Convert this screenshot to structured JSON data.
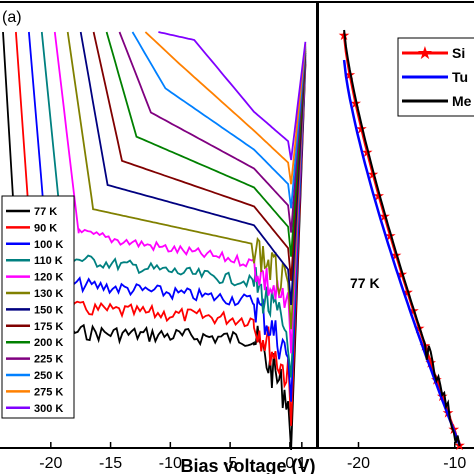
{
  "chart_data": [
    {
      "type": "line",
      "panel_label": "(a)",
      "xlabel": "Bias voltage (V)",
      "xlim": [
        -24,
        1.6
      ],
      "x_ticks": [
        -20,
        -15,
        -10,
        -5,
        0,
        1
      ],
      "x_tick_labels": [
        "-20",
        "-15",
        "-10",
        "-5",
        "0",
        "1"
      ],
      "log_scale_y": true,
      "legend_placement": "bottom-left",
      "series": [
        {
          "name": "77 K",
          "color": "#000000"
        },
        {
          "name": "90 K",
          "color": "#ff0000"
        },
        {
          "name": "100 K",
          "color": "#0000ff"
        },
        {
          "name": "110 K",
          "color": "#008080"
        },
        {
          "name": "120 K",
          "color": "#ff00ff"
        },
        {
          "name": "130 K",
          "color": "#808000"
        },
        {
          "name": "150 K",
          "color": "#000080"
        },
        {
          "name": "175 K",
          "color": "#800000"
        },
        {
          "name": "200 K",
          "color": "#008000"
        },
        {
          "name": "225 K",
          "color": "#800080"
        },
        {
          "name": "250 K",
          "color": "#0080ff"
        },
        {
          "name": "275 K",
          "color": "#ff8000"
        },
        {
          "name": "300 K",
          "color": "#8000ff"
        }
      ]
    },
    {
      "type": "line",
      "annotation": "77 K",
      "xlim": [
        -24,
        -8
      ],
      "x_ticks": [
        -20,
        -10
      ],
      "x_tick_labels": [
        "-20",
        "-10"
      ],
      "legend_placement": "top-right",
      "series": [
        {
          "name": "Si",
          "color": "#ff0000",
          "marker": "star"
        },
        {
          "name": "Tu",
          "color": "#0000ff"
        },
        {
          "name": "Me",
          "color": "#000000"
        }
      ]
    }
  ]
}
